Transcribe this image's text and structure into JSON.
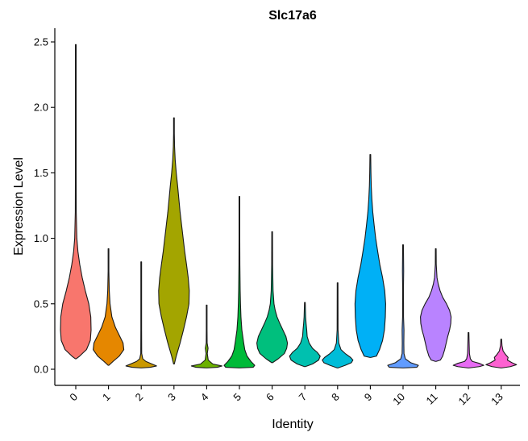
{
  "chart_data": {
    "type": "violin",
    "title": "Slc17a6",
    "xlabel": "Identity",
    "ylabel": "Expression Level",
    "ylim": [
      -0.12,
      2.6
    ],
    "yticks": [
      0.0,
      0.5,
      1.0,
      1.5,
      2.0,
      2.5
    ],
    "ytick_labels": [
      "0.0",
      "0.5",
      "1.0",
      "1.5",
      "2.0",
      "2.5"
    ],
    "categories": [
      "0",
      "1",
      "2",
      "3",
      "4",
      "5",
      "6",
      "7",
      "8",
      "9",
      "10",
      "11",
      "12",
      "13"
    ],
    "colors": [
      "#F8766D",
      "#E58700",
      "#C99800",
      "#A3A500",
      "#6BB100",
      "#00BA38",
      "#00BF7D",
      "#00C0AF",
      "#00BCD8",
      "#00B0F6",
      "#619CFF",
      "#B983FF",
      "#E76BF3",
      "#FD61D1"
    ],
    "series": [
      {
        "name": "0",
        "ymin": 0.08,
        "ymax": 2.48,
        "profile": [
          [
            0.08,
            0.0
          ],
          [
            0.1,
            0.25
          ],
          [
            0.15,
            0.7
          ],
          [
            0.22,
            0.95
          ],
          [
            0.3,
            1.0
          ],
          [
            0.4,
            0.98
          ],
          [
            0.5,
            0.85
          ],
          [
            0.6,
            0.62
          ],
          [
            0.7,
            0.42
          ],
          [
            0.8,
            0.26
          ],
          [
            0.9,
            0.14
          ],
          [
            1.0,
            0.07
          ],
          [
            1.2,
            0.03
          ],
          [
            1.5,
            0.015
          ],
          [
            2.0,
            0.01
          ],
          [
            2.48,
            0.0
          ]
        ]
      },
      {
        "name": "1",
        "ymin": 0.03,
        "ymax": 0.92,
        "profile": [
          [
            0.03,
            0.0
          ],
          [
            0.06,
            0.3
          ],
          [
            0.1,
            0.7
          ],
          [
            0.15,
            1.0
          ],
          [
            0.2,
            0.95
          ],
          [
            0.26,
            0.7
          ],
          [
            0.32,
            0.45
          ],
          [
            0.4,
            0.22
          ],
          [
            0.5,
            0.1
          ],
          [
            0.6,
            0.05
          ],
          [
            0.75,
            0.02
          ],
          [
            0.92,
            0.0
          ]
        ]
      },
      {
        "name": "2",
        "ymin": 0.01,
        "ymax": 0.82,
        "profile": [
          [
            0.01,
            0.0
          ],
          [
            0.015,
            0.6
          ],
          [
            0.025,
            1.0
          ],
          [
            0.04,
            0.7
          ],
          [
            0.06,
            0.3
          ],
          [
            0.08,
            0.1
          ],
          [
            0.12,
            0.03
          ],
          [
            0.3,
            0.012
          ],
          [
            0.82,
            0.0
          ]
        ]
      },
      {
        "name": "3",
        "ymin": 0.04,
        "ymax": 1.92,
        "profile": [
          [
            0.04,
            0.0
          ],
          [
            0.1,
            0.15
          ],
          [
            0.2,
            0.4
          ],
          [
            0.3,
            0.62
          ],
          [
            0.4,
            0.82
          ],
          [
            0.5,
            0.98
          ],
          [
            0.6,
            1.0
          ],
          [
            0.7,
            0.93
          ],
          [
            0.8,
            0.82
          ],
          [
            0.9,
            0.7
          ],
          [
            1.0,
            0.6
          ],
          [
            1.1,
            0.5
          ],
          [
            1.2,
            0.4
          ],
          [
            1.3,
            0.32
          ],
          [
            1.4,
            0.24
          ],
          [
            1.5,
            0.15
          ],
          [
            1.6,
            0.08
          ],
          [
            1.7,
            0.04
          ],
          [
            1.8,
            0.02
          ],
          [
            1.92,
            0.0
          ]
        ]
      },
      {
        "name": "4",
        "ymin": 0.01,
        "ymax": 0.49,
        "profile": [
          [
            0.01,
            0.0
          ],
          [
            0.015,
            0.7
          ],
          [
            0.025,
            1.0
          ],
          [
            0.04,
            0.4
          ],
          [
            0.07,
            0.1
          ],
          [
            0.12,
            0.04
          ],
          [
            0.16,
            0.09
          ],
          [
            0.2,
            0.03
          ],
          [
            0.3,
            0.02
          ],
          [
            0.49,
            0.0
          ]
        ]
      },
      {
        "name": "5",
        "ymin": 0.01,
        "ymax": 1.32,
        "profile": [
          [
            0.01,
            0.0
          ],
          [
            0.015,
            0.9
          ],
          [
            0.03,
            1.0
          ],
          [
            0.06,
            0.75
          ],
          [
            0.1,
            0.5
          ],
          [
            0.15,
            0.35
          ],
          [
            0.2,
            0.28
          ],
          [
            0.25,
            0.22
          ],
          [
            0.3,
            0.16
          ],
          [
            0.4,
            0.1
          ],
          [
            0.5,
            0.07
          ],
          [
            0.6,
            0.05
          ],
          [
            0.8,
            0.03
          ],
          [
            1.0,
            0.02
          ],
          [
            1.32,
            0.0
          ]
        ]
      },
      {
        "name": "6",
        "ymin": 0.05,
        "ymax": 1.05,
        "profile": [
          [
            0.05,
            0.0
          ],
          [
            0.08,
            0.4
          ],
          [
            0.12,
            0.8
          ],
          [
            0.16,
            0.95
          ],
          [
            0.2,
            1.0
          ],
          [
            0.25,
            0.9
          ],
          [
            0.3,
            0.7
          ],
          [
            0.35,
            0.5
          ],
          [
            0.4,
            0.32
          ],
          [
            0.45,
            0.2
          ],
          [
            0.5,
            0.12
          ],
          [
            0.6,
            0.06
          ],
          [
            0.8,
            0.03
          ],
          [
            1.05,
            0.0
          ]
        ]
      },
      {
        "name": "7",
        "ymin": 0.02,
        "ymax": 0.51,
        "profile": [
          [
            0.02,
            0.0
          ],
          [
            0.04,
            0.5
          ],
          [
            0.07,
            0.9
          ],
          [
            0.1,
            1.0
          ],
          [
            0.13,
            0.8
          ],
          [
            0.16,
            0.5
          ],
          [
            0.2,
            0.28
          ],
          [
            0.25,
            0.15
          ],
          [
            0.3,
            0.12
          ],
          [
            0.35,
            0.08
          ],
          [
            0.4,
            0.05
          ],
          [
            0.51,
            0.0
          ]
        ]
      },
      {
        "name": "8",
        "ymin": 0.01,
        "ymax": 0.66,
        "profile": [
          [
            0.01,
            0.0
          ],
          [
            0.03,
            0.5
          ],
          [
            0.05,
            0.9
          ],
          [
            0.07,
            1.0
          ],
          [
            0.09,
            0.85
          ],
          [
            0.12,
            0.5
          ],
          [
            0.15,
            0.22
          ],
          [
            0.2,
            0.08
          ],
          [
            0.3,
            0.03
          ],
          [
            0.66,
            0.0
          ]
        ]
      },
      {
        "name": "9",
        "ymin": 0.09,
        "ymax": 1.64,
        "profile": [
          [
            0.09,
            0.0
          ],
          [
            0.1,
            0.4
          ],
          [
            0.15,
            0.6
          ],
          [
            0.22,
            0.8
          ],
          [
            0.3,
            0.92
          ],
          [
            0.4,
            0.98
          ],
          [
            0.5,
            1.0
          ],
          [
            0.6,
            0.94
          ],
          [
            0.7,
            0.8
          ],
          [
            0.8,
            0.62
          ],
          [
            0.9,
            0.48
          ],
          [
            1.0,
            0.35
          ],
          [
            1.1,
            0.25
          ],
          [
            1.2,
            0.16
          ],
          [
            1.3,
            0.1
          ],
          [
            1.4,
            0.06
          ],
          [
            1.5,
            0.04
          ],
          [
            1.64,
            0.0
          ]
        ]
      },
      {
        "name": "10",
        "ymin": 0.01,
        "ymax": 0.95,
        "profile": [
          [
            0.01,
            0.0
          ],
          [
            0.015,
            0.9
          ],
          [
            0.03,
            1.0
          ],
          [
            0.05,
            0.5
          ],
          [
            0.08,
            0.15
          ],
          [
            0.12,
            0.06
          ],
          [
            0.2,
            0.05
          ],
          [
            0.3,
            0.06
          ],
          [
            0.4,
            0.03
          ],
          [
            0.5,
            0.03
          ],
          [
            0.6,
            0.02
          ],
          [
            0.75,
            0.04
          ],
          [
            0.95,
            0.0
          ]
        ]
      },
      {
        "name": "11",
        "ymin": 0.06,
        "ymax": 0.92,
        "profile": [
          [
            0.06,
            0.0
          ],
          [
            0.07,
            0.3
          ],
          [
            0.1,
            0.45
          ],
          [
            0.15,
            0.58
          ],
          [
            0.2,
            0.68
          ],
          [
            0.25,
            0.78
          ],
          [
            0.3,
            0.9
          ],
          [
            0.35,
            0.98
          ],
          [
            0.4,
            1.0
          ],
          [
            0.45,
            0.9
          ],
          [
            0.5,
            0.7
          ],
          [
            0.55,
            0.45
          ],
          [
            0.6,
            0.28
          ],
          [
            0.65,
            0.16
          ],
          [
            0.7,
            0.08
          ],
          [
            0.8,
            0.03
          ],
          [
            0.92,
            0.0
          ]
        ]
      },
      {
        "name": "12",
        "ymin": 0.01,
        "ymax": 0.28,
        "profile": [
          [
            0.01,
            0.0
          ],
          [
            0.02,
            0.7
          ],
          [
            0.03,
            1.0
          ],
          [
            0.045,
            0.7
          ],
          [
            0.06,
            0.25
          ],
          [
            0.08,
            0.12
          ],
          [
            0.12,
            0.06
          ],
          [
            0.2,
            0.04
          ],
          [
            0.28,
            0.0
          ]
        ]
      },
      {
        "name": "13",
        "ymin": 0.01,
        "ymax": 0.23,
        "profile": [
          [
            0.01,
            0.0
          ],
          [
            0.02,
            0.6
          ],
          [
            0.035,
            1.0
          ],
          [
            0.05,
            0.7
          ],
          [
            0.07,
            0.4
          ],
          [
            0.09,
            0.45
          ],
          [
            0.11,
            0.3
          ],
          [
            0.14,
            0.12
          ],
          [
            0.18,
            0.05
          ],
          [
            0.23,
            0.0
          ]
        ]
      }
    ]
  }
}
